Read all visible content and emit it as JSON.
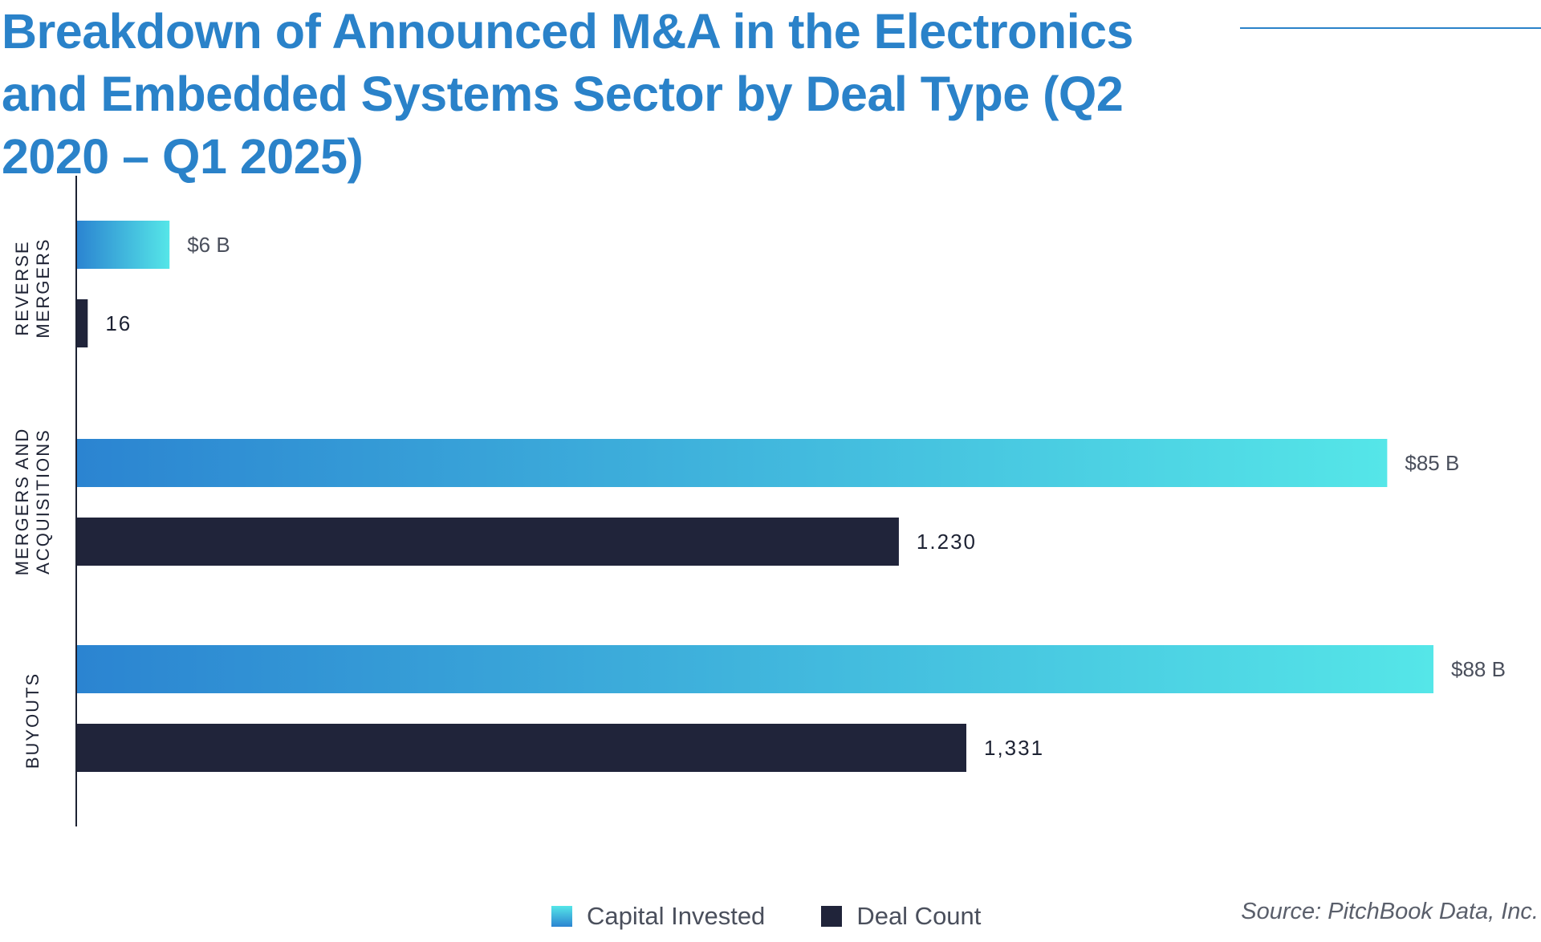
{
  "title": "Breakdown of Announced M&A in the Electronics and Embedded Systems Sector by Deal Type (Q2 2020 – Q1 2025)",
  "source": "Source: PitchBook Data, Inc.",
  "colors": {
    "title": "#2a82c9",
    "capital_gradient_start": "#2b84d1",
    "capital_gradient_end": "#55e6e8",
    "deal_count": "#20243a",
    "axis": "#1d2233"
  },
  "chart_data": {
    "type": "bar",
    "orientation": "horizontal",
    "categories": [
      {
        "lines": [
          "REVERSE",
          "MERGERS"
        ]
      },
      {
        "lines": [
          "MERGERS AND",
          "ACQUISITIONS"
        ]
      },
      {
        "lines": [
          "BUYOUTS"
        ]
      }
    ],
    "series": [
      {
        "name": "Capital Invested",
        "values": [
          6,
          85,
          88
        ],
        "labels": [
          "$6 B",
          "$85 B",
          "$88 B"
        ]
      },
      {
        "name": "Deal Count",
        "values": [
          16,
          1230,
          1331
        ],
        "labels": [
          "16",
          "1.230",
          "1,331"
        ]
      }
    ],
    "legend": "bottom-center",
    "grid": false
  }
}
